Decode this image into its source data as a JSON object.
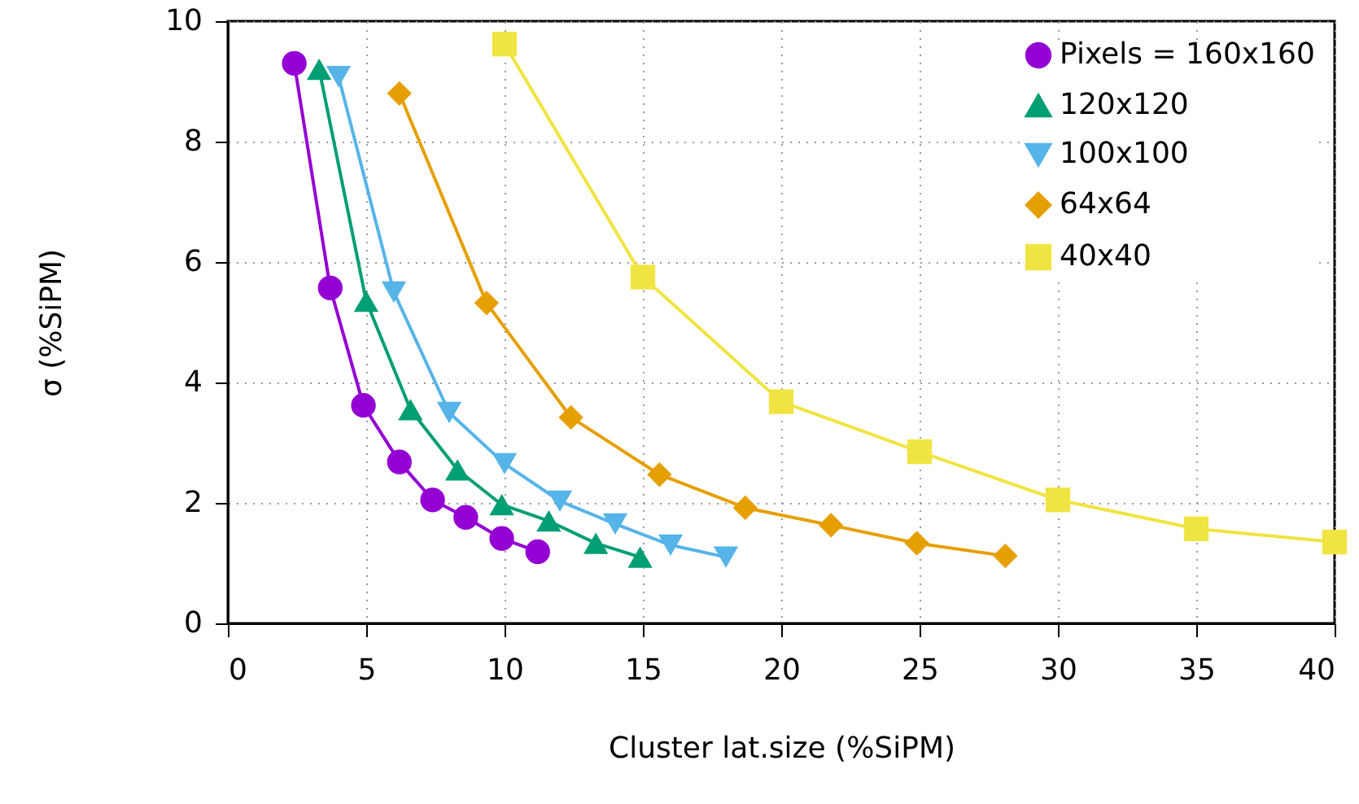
{
  "chart_data": {
    "type": "line",
    "xlabel": "Cluster lat.size (%SiPM)",
    "ylabel": "σ (%SiPM)",
    "xlim": [
      0,
      40
    ],
    "xticks": [
      0,
      5,
      10,
      15,
      20,
      25,
      30,
      35,
      40
    ],
    "ylim": [
      0,
      10
    ],
    "yticks": [
      0,
      2,
      4,
      6,
      8,
      10
    ],
    "grid": true,
    "legend": "top right",
    "line_style": "solid",
    "series": [
      {
        "name": "Pixels = 160x160",
        "color": "#9400d3",
        "marker": "circle",
        "x": [
          2.4,
          3.7,
          4.9,
          6.2,
          7.4,
          8.6,
          9.9,
          11.2
        ],
        "values": [
          9.3,
          5.57,
          3.62,
          2.68,
          2.05,
          1.76,
          1.41,
          1.19
        ]
      },
      {
        "name": "120x120",
        "color": "#009e73",
        "marker": "triangle",
        "x": [
          3.3,
          5.0,
          6.6,
          8.3,
          9.9,
          11.6,
          13.3,
          14.9
        ],
        "values": [
          9.2,
          5.35,
          3.55,
          2.55,
          1.97,
          1.7,
          1.33,
          1.1
        ]
      },
      {
        "name": "100x100",
        "color": "#56b4e9",
        "marker": "triangle-down",
        "x": [
          4,
          6,
          8,
          10,
          12,
          14,
          16,
          18
        ],
        "values": [
          9.08,
          5.5,
          3.5,
          2.65,
          2.03,
          1.65,
          1.3,
          1.1
        ]
      },
      {
        "name": "64x64",
        "color": "#e69f00",
        "marker": "diamond",
        "x": [
          6.2,
          9.35,
          12.4,
          15.6,
          18.7,
          21.8,
          24.9,
          28.1
        ],
        "values": [
          8.8,
          5.32,
          3.42,
          2.47,
          1.92,
          1.63,
          1.33,
          1.12
        ]
      },
      {
        "name": "40x40",
        "color": "#f0e442",
        "marker": "square",
        "x": [
          10,
          15,
          20,
          25,
          30,
          35,
          40
        ],
        "values": [
          9.62,
          5.75,
          3.68,
          2.85,
          2.05,
          1.57,
          1.35
        ]
      }
    ]
  }
}
